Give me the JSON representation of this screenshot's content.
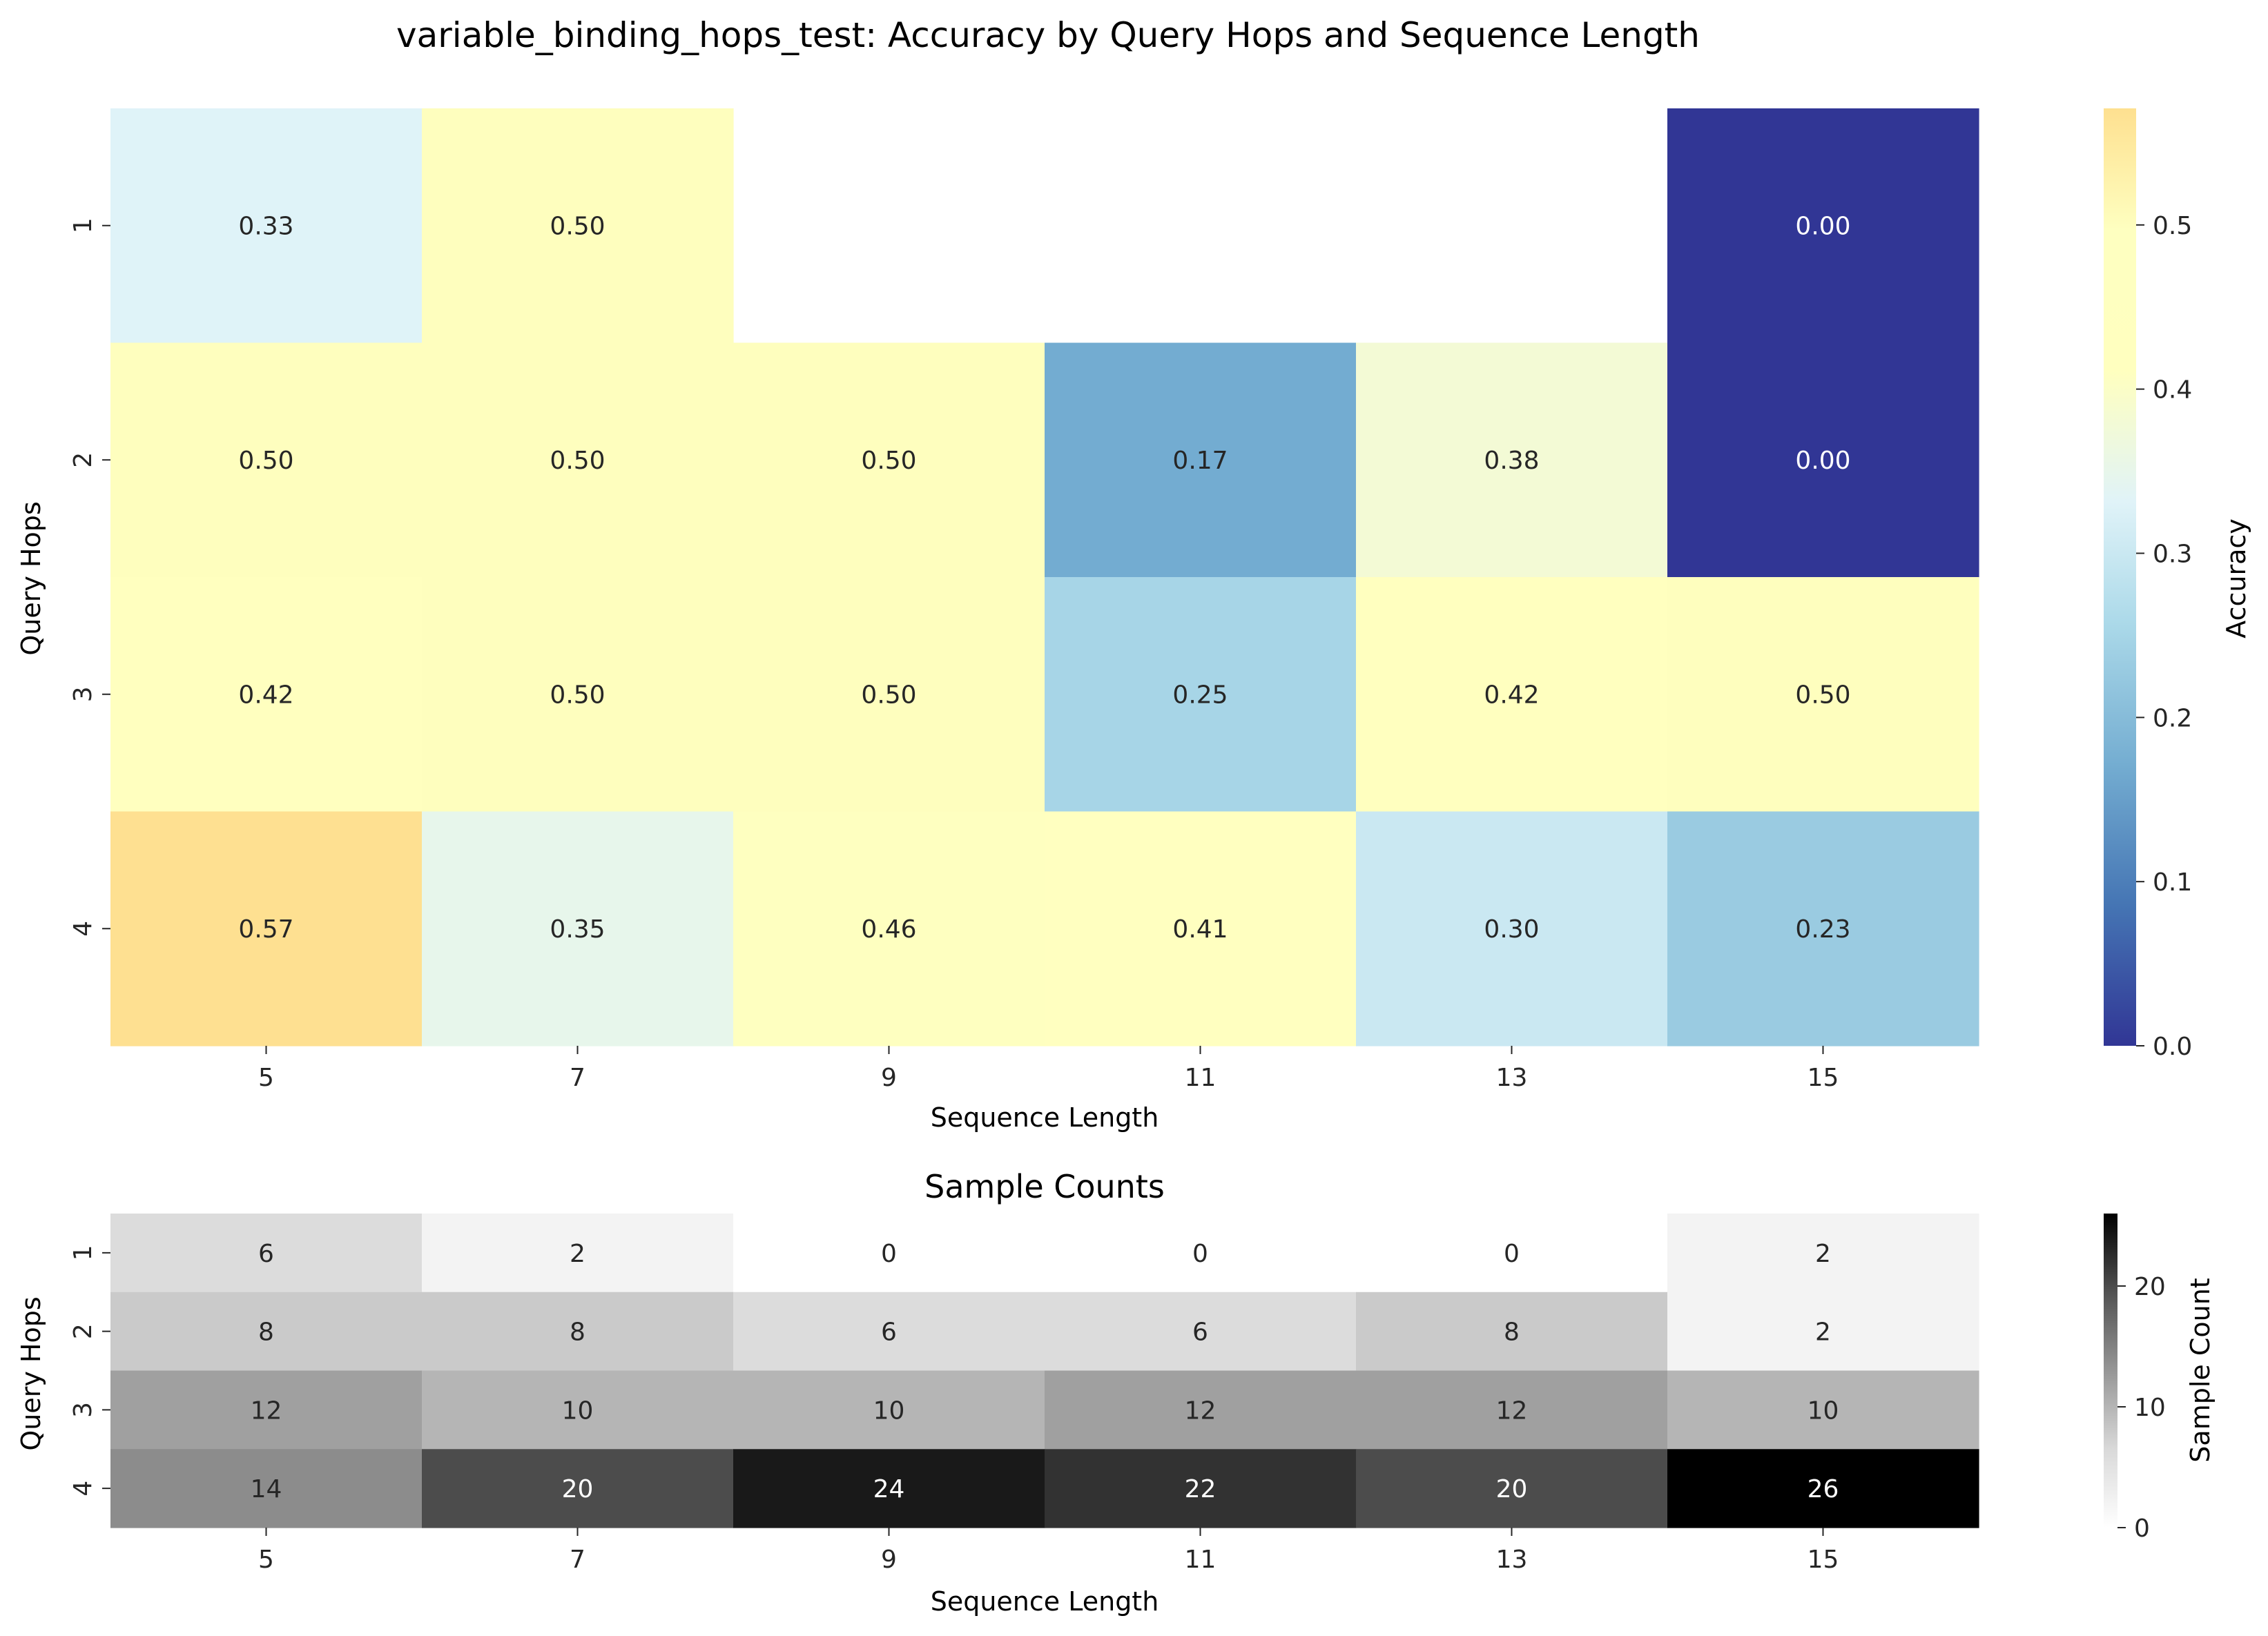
{
  "chart_data": [
    {
      "type": "heatmap",
      "title": "variable_binding_hops_test: Accuracy by Query Hops and Sequence Length",
      "xlabel": "Sequence Length",
      "ylabel": "Query Hops",
      "x": [
        "5",
        "7",
        "9",
        "11",
        "13",
        "15"
      ],
      "y": [
        "1",
        "2",
        "3",
        "4"
      ],
      "values": [
        [
          0.33,
          0.5,
          null,
          null,
          null,
          0.0
        ],
        [
          0.5,
          0.5,
          0.5,
          0.17,
          0.38,
          0.0
        ],
        [
          0.42,
          0.5,
          0.5,
          0.25,
          0.42,
          0.5
        ],
        [
          0.57,
          0.35,
          0.46,
          0.41,
          0.3,
          0.23
        ]
      ],
      "value_format": "2dp",
      "colormap": "RdYlBu_r-like (dark blue low, yellow high)",
      "colorbar": {
        "label": "Accuracy",
        "range": [
          0.0,
          0.571
        ],
        "ticks": [
          "0.0",
          "0.1",
          "0.2",
          "0.3",
          "0.4",
          "0.5"
        ]
      },
      "grid": false
    },
    {
      "type": "heatmap",
      "title": "Sample Counts",
      "xlabel": "Sequence Length",
      "ylabel": "Query Hops",
      "x": [
        "5",
        "7",
        "9",
        "11",
        "13",
        "15"
      ],
      "y": [
        "1",
        "2",
        "3",
        "4"
      ],
      "values": [
        [
          6,
          2,
          0,
          0,
          0,
          2
        ],
        [
          8,
          8,
          6,
          6,
          8,
          2
        ],
        [
          12,
          10,
          10,
          12,
          12,
          10
        ],
        [
          14,
          20,
          24,
          22,
          20,
          26
        ]
      ],
      "value_format": "int",
      "colormap": "Greys",
      "colorbar": {
        "label": "Sample Count",
        "range": [
          0,
          26
        ],
        "ticks": [
          "0",
          "10",
          "20"
        ]
      },
      "grid": false
    }
  ]
}
